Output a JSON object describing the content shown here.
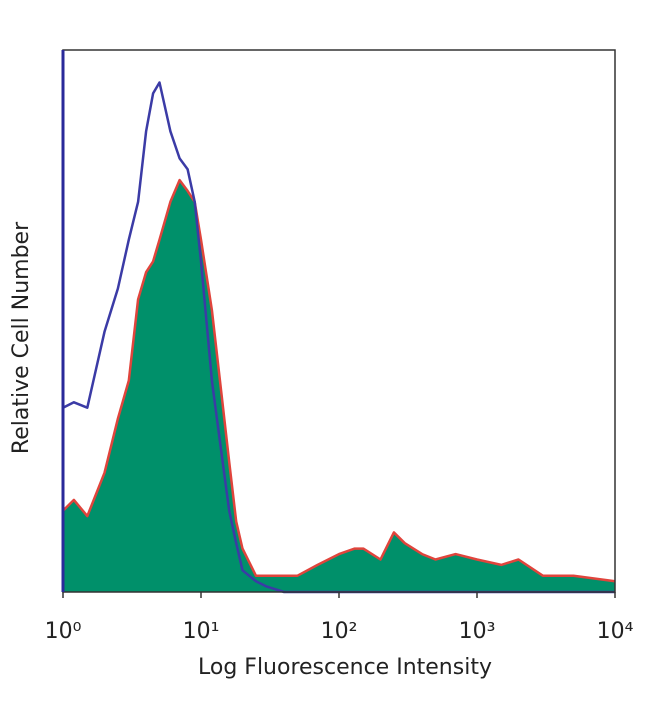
{
  "chart_data": {
    "type": "area",
    "x_label": "Log Fluorescence Intensity",
    "y_label": "Relative Cell Number",
    "x": [
      1,
      1.2,
      1.5,
      2,
      2.5,
      3,
      3.5,
      4,
      4.5,
      5,
      6,
      7,
      8,
      9,
      10,
      12,
      14,
      16,
      18,
      20,
      25,
      30,
      40,
      50,
      70,
      100,
      130,
      150,
      200,
      250,
      300,
      400,
      500,
      700,
      1000,
      1500,
      2000,
      3000,
      5000,
      10000
    ],
    "series": [
      {
        "color": "#3b3ba6",
        "fill": "none",
        "values": [
          34,
          35,
          34,
          48,
          56,
          65,
          72,
          85,
          92,
          94,
          85,
          80,
          78,
          72,
          61,
          39,
          26,
          15,
          9,
          4,
          2,
          1,
          0,
          0,
          0,
          0,
          0,
          0,
          0,
          0,
          0,
          0,
          0,
          0,
          0,
          0,
          0,
          0,
          0,
          0
        ]
      },
      {
        "color": "#e0443c",
        "fill": "#00906a",
        "values": [
          15,
          17,
          14,
          22,
          32,
          39,
          54,
          59,
          61,
          65,
          72,
          76,
          74,
          72,
          65,
          52,
          37,
          24,
          13,
          8,
          3,
          3,
          3,
          3,
          5,
          7,
          8,
          8,
          6,
          11,
          9,
          7,
          6,
          7,
          6,
          5,
          6,
          3,
          3,
          2
        ]
      }
    ],
    "xscale": "log",
    "xlim": [
      1,
      10000
    ],
    "xticks": [
      {
        "value": 1,
        "label": "10⁰"
      },
      {
        "value": 10,
        "label": "10¹"
      },
      {
        "value": 100,
        "label": "10²"
      },
      {
        "value": 1000,
        "label": "10³"
      },
      {
        "value": 10000,
        "label": "10⁴"
      }
    ],
    "ylim": [
      0,
      100
    ]
  }
}
